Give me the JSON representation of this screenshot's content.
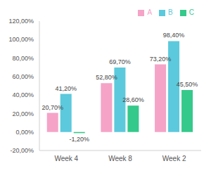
{
  "chart_data": {
    "type": "bar",
    "categories": [
      "Week 4",
      "Week 8",
      "Week 2"
    ],
    "series": [
      {
        "name": "A",
        "color": "#f5a3c7",
        "values": [
          20.7,
          52.8,
          73.2
        ],
        "value_labels": [
          "20,70%",
          "52,80%",
          "73,20%"
        ]
      },
      {
        "name": "B",
        "color": "#5cc9dc",
        "values": [
          41.2,
          69.7,
          98.4
        ],
        "value_labels": [
          "41,20%",
          "69,70%",
          "98,40%"
        ]
      },
      {
        "name": "C",
        "color": "#35c98b",
        "values": [
          -1.2,
          28.6,
          45.5
        ],
        "value_labels": [
          "-1,20%",
          "28,60%",
          "45,50%"
        ]
      }
    ],
    "ylim": [
      -20,
      120
    ],
    "yticks": [
      {
        "value": -20,
        "label": "-20,00%"
      },
      {
        "value": 0,
        "label": "0,00%"
      },
      {
        "value": 20,
        "label": "20,00%"
      },
      {
        "value": 40,
        "label": "40,00%"
      },
      {
        "value": 60,
        "label": "60,00%"
      },
      {
        "value": 80,
        "label": "80,00%"
      },
      {
        "value": 100,
        "label": "100,00%"
      },
      {
        "value": 120,
        "label": "120,00%"
      }
    ],
    "grid": false,
    "legend": "top-right",
    "data_labels": true
  }
}
